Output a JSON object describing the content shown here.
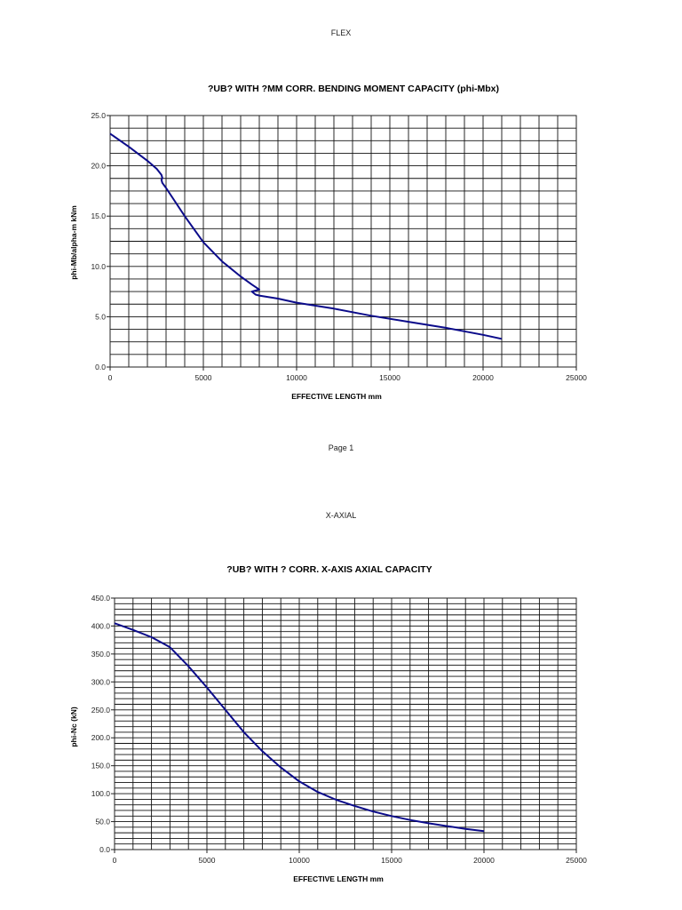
{
  "page1": {
    "section_label": "FLEX",
    "footer": "Page 1"
  },
  "page2": {
    "section_label": "X-AXIAL"
  },
  "chart_data": [
    {
      "type": "line",
      "title": "?UB? WITH ?MM CORR. BENDING MOMENT CAPACITY (phi-Mbx)",
      "xlabel": "EFFECTIVE LENGTH mm",
      "ylabel": "phi-Mb/alpha-m kNm",
      "xlim": [
        0,
        25000
      ],
      "ylim": [
        0,
        25
      ],
      "xticks": [
        "0",
        "5000",
        "10000",
        "15000",
        "20000",
        "25000"
      ],
      "yticks": [
        "0.0",
        "5.0",
        "10.0",
        "15.0",
        "20.0",
        "25.0"
      ],
      "grid": {
        "x_step": 1000,
        "y_step": 1.25
      },
      "line_color": "#0b0b8a",
      "legend": "none",
      "x": [
        0,
        1000,
        2000,
        2500,
        2750,
        2800,
        2750,
        2800,
        3000,
        4000,
        5000,
        6000,
        7000,
        7600,
        8000,
        7600,
        7800,
        8000,
        9000,
        10000,
        12000,
        14000,
        16000,
        18000,
        20000,
        21000
      ],
      "y": [
        23.2,
        21.9,
        20.5,
        19.7,
        19.1,
        18.8,
        18.6,
        18.3,
        17.8,
        15.0,
        12.4,
        10.5,
        9.0,
        8.2,
        7.7,
        7.5,
        7.2,
        7.1,
        6.8,
        6.4,
        5.8,
        5.1,
        4.5,
        3.9,
        3.2,
        2.8
      ]
    },
    {
      "type": "line",
      "title": "?UB? WITH ? CORR. X-AXIS AXIAL CAPACITY",
      "xlabel": "EFFECTIVE LENGTH mm",
      "ylabel": "phi-Nc (kN)",
      "xlim": [
        0,
        25000
      ],
      "ylim": [
        0,
        450
      ],
      "xticks": [
        "0",
        "5000",
        "10000",
        "15000",
        "20000",
        "25000"
      ],
      "yticks": [
        "0.0",
        "50.0",
        "100.0",
        "150.0",
        "200.0",
        "250.0",
        "300.0",
        "350.0",
        "400.0",
        "450.0"
      ],
      "grid": {
        "x_step": 1000,
        "y_step": 10
      },
      "line_color": "#0b0b8a",
      "legend": "none",
      "x": [
        0,
        1000,
        2000,
        3000,
        4000,
        5000,
        6000,
        7000,
        8000,
        9000,
        10000,
        11000,
        12000,
        13000,
        14000,
        15000,
        16000,
        17000,
        18000,
        19000,
        20000
      ],
      "y": [
        405,
        393,
        380,
        362,
        328,
        290,
        250,
        210,
        176,
        147,
        122,
        103,
        89,
        78,
        68,
        60,
        53,
        47,
        42,
        37,
        33
      ]
    }
  ]
}
